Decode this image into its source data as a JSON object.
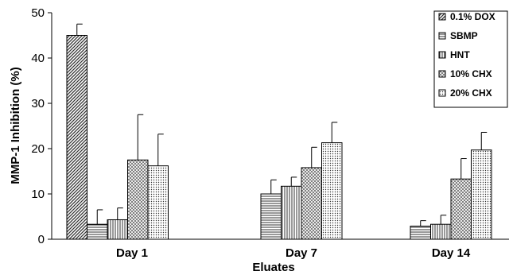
{
  "chart_data": {
    "type": "bar",
    "categories": [
      "Day 1",
      "Day 7",
      "Day 14"
    ],
    "xlabel": "Eluates",
    "ylabel": "MMP-1 Inhibition (%)",
    "ylim": [
      0,
      50
    ],
    "yticks": [
      0,
      10,
      20,
      30,
      40,
      50
    ],
    "grid": false,
    "legend_position": "top-right",
    "series": [
      {
        "name": "0.1% DOX",
        "values": [
          45.0,
          null,
          null
        ],
        "errors": [
          2.5,
          null,
          null
        ],
        "pattern": "diag-dense"
      },
      {
        "name": "SBMP",
        "values": [
          3.3,
          10.0,
          2.9
        ],
        "errors": [
          3.2,
          3.1,
          1.2
        ],
        "pattern": "horizontal"
      },
      {
        "name": "HNT",
        "values": [
          4.3,
          11.7,
          3.3
        ],
        "errors": [
          2.6,
          2.0,
          2.0
        ],
        "pattern": "vertical"
      },
      {
        "name": "10% CHX",
        "values": [
          17.5,
          15.8,
          13.3
        ],
        "errors": [
          10.0,
          4.5,
          4.5
        ],
        "pattern": "crosshatch"
      },
      {
        "name": "20% CHX",
        "values": [
          16.2,
          21.3,
          19.7
        ],
        "errors": [
          7.0,
          4.5,
          3.9
        ],
        "pattern": "dots"
      }
    ]
  }
}
